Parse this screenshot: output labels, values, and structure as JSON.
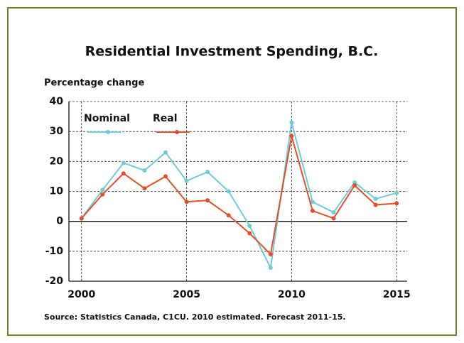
{
  "chart_data": {
    "type": "line",
    "title": "Residential Investment Spending, B.C.",
    "y_label": "Percentage change",
    "source": "Source: Statistics Canada, C1CU. 2010 estimated.  Forecast 2011-15.",
    "x": [
      2000,
      2001,
      2002,
      2003,
      2004,
      2005,
      2006,
      2007,
      2008,
      2009,
      2010,
      2011,
      2012,
      2013,
      2014,
      2015
    ],
    "series": [
      {
        "name": "Nominal",
        "color": "#6ecbd9",
        "values": [
          1,
          10.5,
          19.5,
          17,
          23,
          13.5,
          16.5,
          10,
          -1.5,
          -15.5,
          33,
          6.5,
          3,
          13,
          7.5,
          9.5
        ]
      },
      {
        "name": "Real",
        "color": "#e0502a",
        "values": [
          1,
          9,
          16,
          11,
          15,
          6.5,
          7,
          2,
          -4,
          -11,
          28.5,
          3.5,
          1,
          12,
          5.5,
          6
        ]
      }
    ],
    "xlim": [
      1999.4,
      2015.5
    ],
    "xticks": [
      2000,
      2005,
      2010,
      2015
    ],
    "ylim": [
      -20,
      40
    ],
    "yticks": [
      -20,
      -10,
      0,
      10,
      20,
      30,
      40
    ],
    "grid": true
  }
}
